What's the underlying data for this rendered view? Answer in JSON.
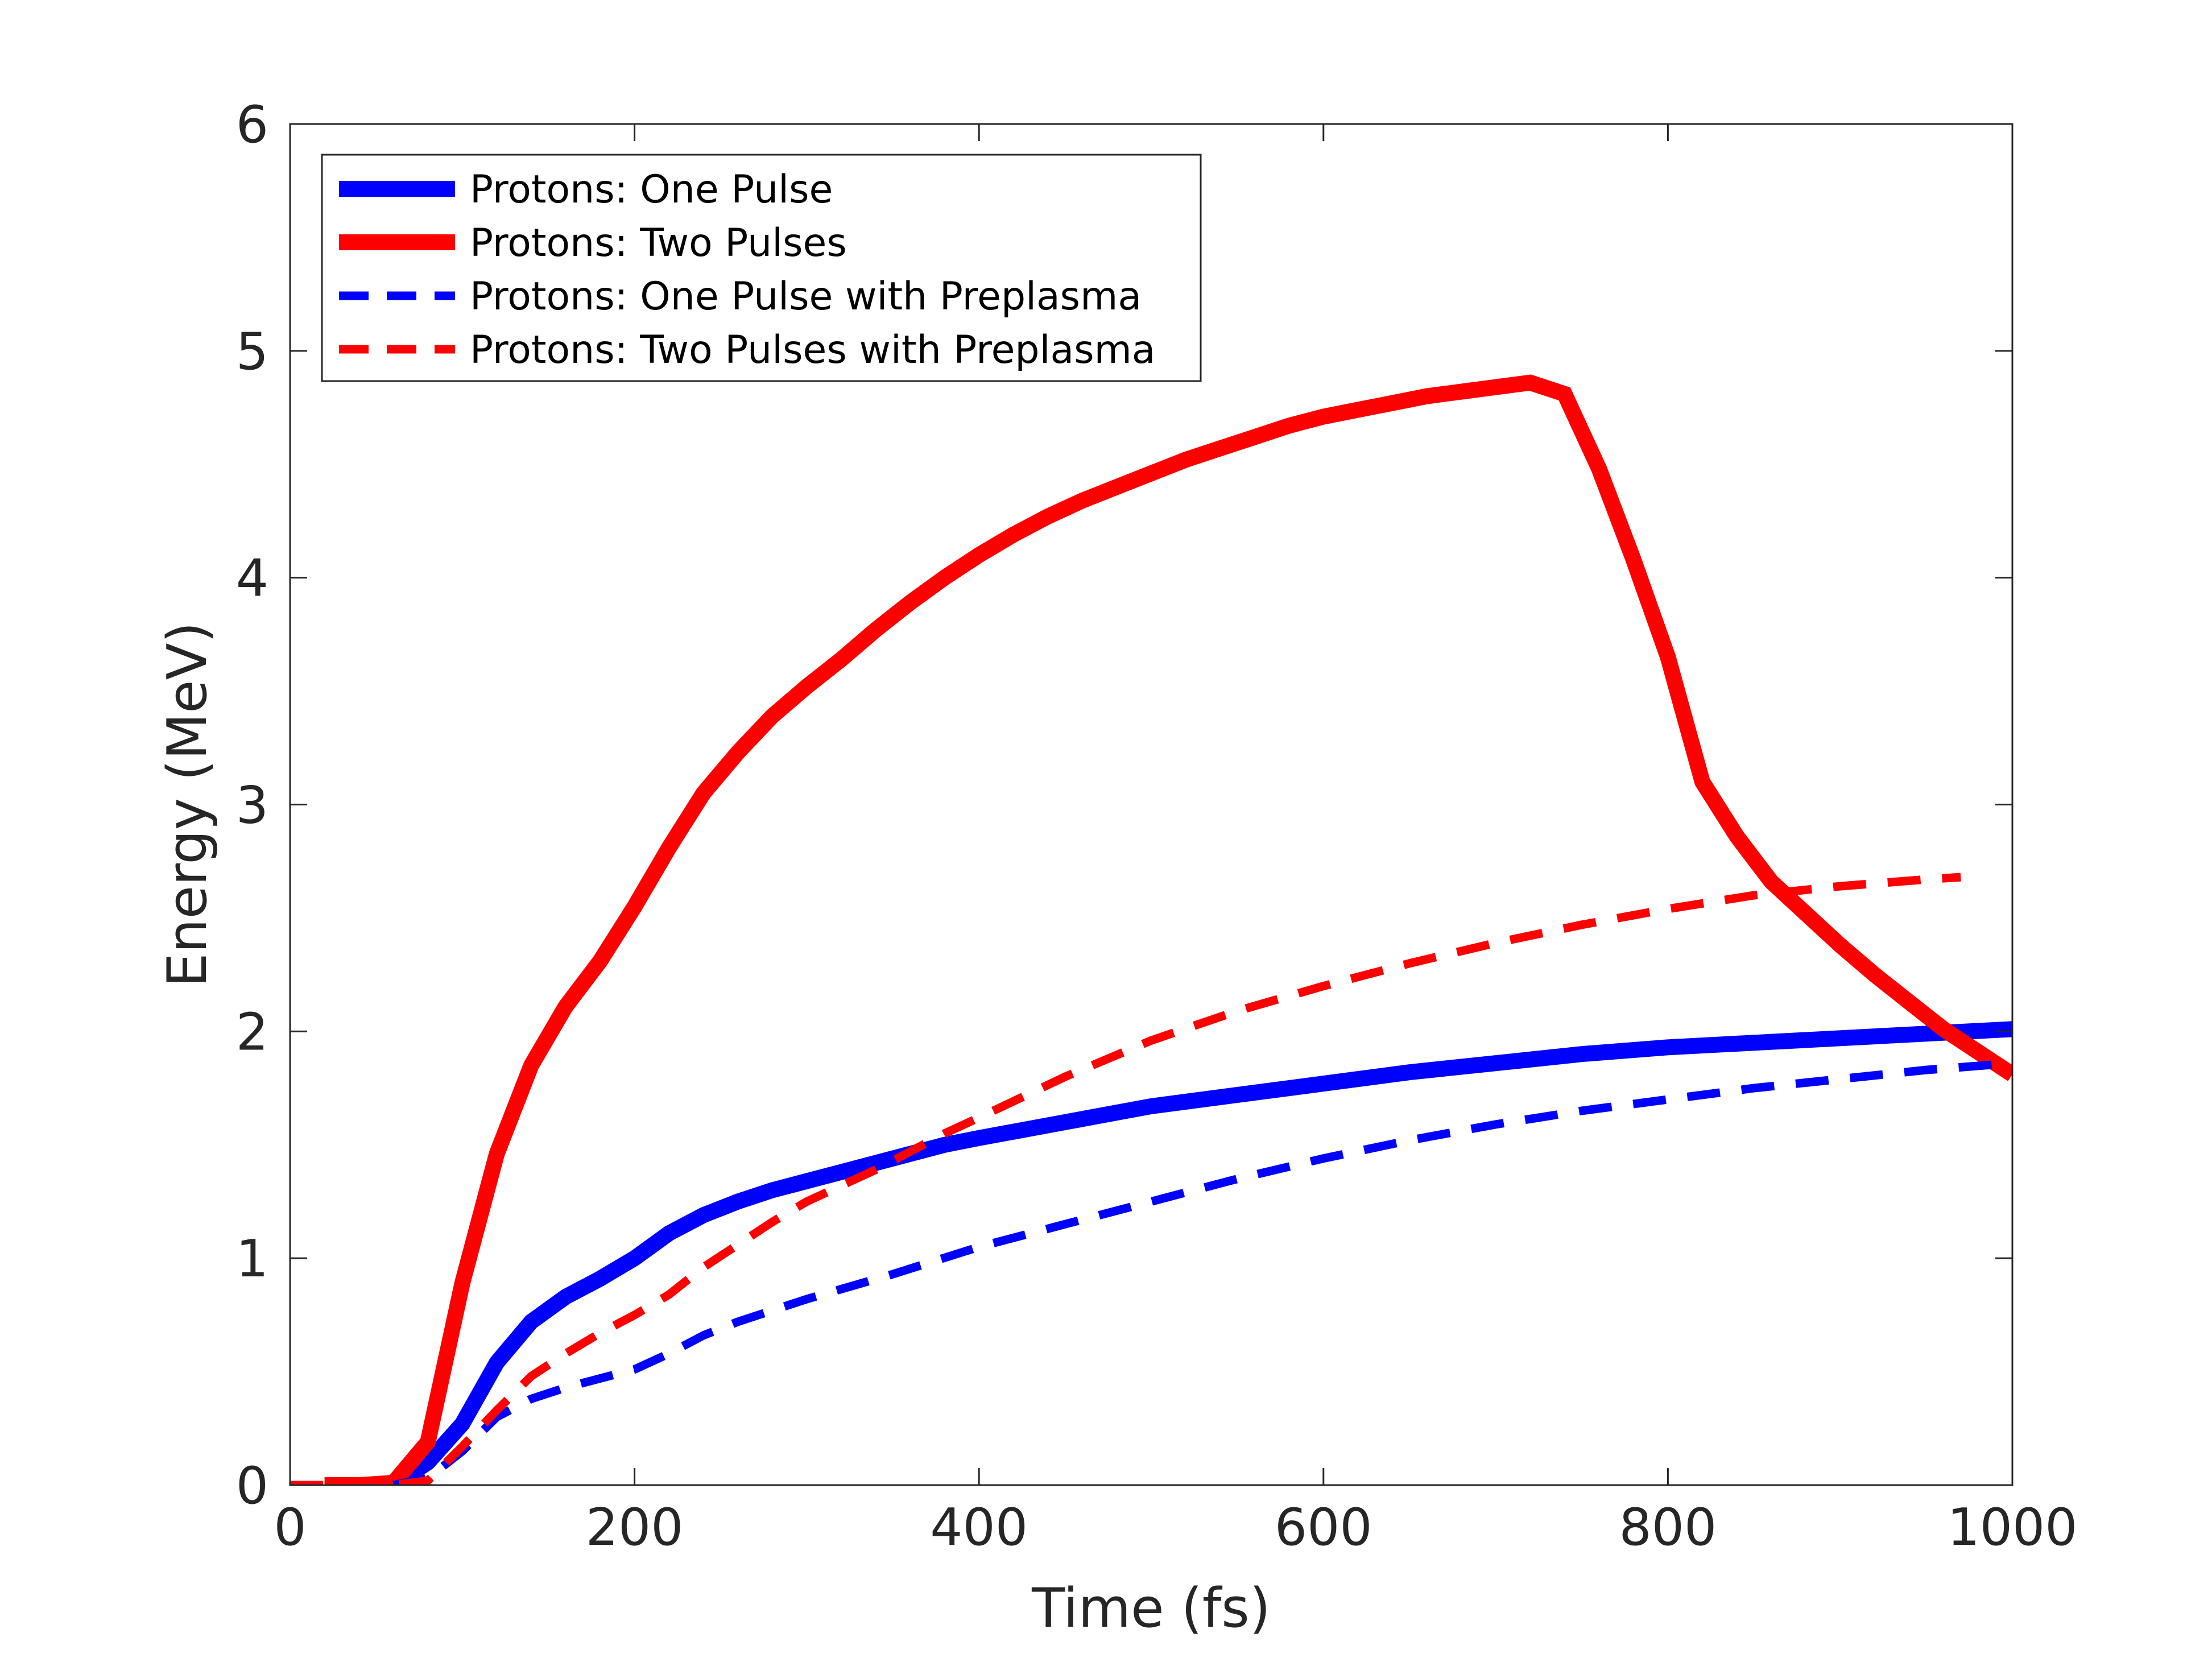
{
  "chart_data": {
    "type": "line",
    "title": "",
    "xlabel": "Time (fs)",
    "ylabel": "Energy (MeV)",
    "xlim": [
      0,
      1000
    ],
    "ylim": [
      0,
      6
    ],
    "xticks": [
      0,
      200,
      400,
      600,
      800,
      1000
    ],
    "yticks": [
      0,
      1,
      2,
      3,
      4,
      5,
      6
    ],
    "grid": false,
    "legend_position": "top-left",
    "series": [
      {
        "name": "Protons: One Pulse",
        "color": "#0000ff",
        "style": "solid",
        "x": [
          60,
          80,
          100,
          120,
          140,
          160,
          180,
          200,
          220,
          240,
          260,
          280,
          300,
          320,
          340,
          360,
          380,
          400,
          450,
          500,
          550,
          600,
          650,
          700,
          750,
          800,
          850,
          900,
          950,
          1000
        ],
        "y": [
          0.0,
          0.1,
          0.27,
          0.54,
          0.72,
          0.83,
          0.91,
          1.0,
          1.11,
          1.19,
          1.25,
          1.3,
          1.34,
          1.38,
          1.42,
          1.46,
          1.5,
          1.53,
          1.6,
          1.67,
          1.72,
          1.77,
          1.82,
          1.86,
          1.9,
          1.93,
          1.95,
          1.97,
          1.99,
          2.01
        ]
      },
      {
        "name": "Protons: Two Pulses",
        "color": "#ff0000",
        "style": "solid",
        "x": [
          20,
          40,
          60,
          80,
          100,
          120,
          140,
          160,
          180,
          200,
          220,
          240,
          260,
          280,
          300,
          320,
          340,
          360,
          380,
          400,
          420,
          440,
          460,
          480,
          500,
          520,
          540,
          560,
          580,
          600,
          620,
          640,
          660,
          680,
          700,
          720,
          740,
          760,
          780,
          800,
          820,
          840,
          860,
          880,
          900,
          920,
          940,
          960,
          980,
          1000
        ],
        "y": [
          0.0,
          0.0,
          0.01,
          0.19,
          0.89,
          1.46,
          1.85,
          2.11,
          2.31,
          2.55,
          2.81,
          3.05,
          3.23,
          3.39,
          3.52,
          3.64,
          3.77,
          3.89,
          4.0,
          4.1,
          4.19,
          4.27,
          4.34,
          4.4,
          4.46,
          4.52,
          4.57,
          4.62,
          4.67,
          4.71,
          4.74,
          4.77,
          4.8,
          4.82,
          4.84,
          4.86,
          4.81,
          4.48,
          4.08,
          3.65,
          3.1,
          2.86,
          2.66,
          2.52,
          2.38,
          2.25,
          2.13,
          2.01,
          1.91,
          1.81
        ]
      },
      {
        "name": "Protons: One Pulse with Preplasma",
        "color": "#0000ff",
        "style": "dashed",
        "x": [
          60,
          80,
          100,
          120,
          140,
          160,
          180,
          200,
          220,
          240,
          260,
          280,
          300,
          350,
          400,
          450,
          500,
          550,
          600,
          650,
          700,
          750,
          800,
          850,
          900,
          950,
          1000
        ],
        "y": [
          0.0,
          0.03,
          0.15,
          0.3,
          0.38,
          0.43,
          0.47,
          0.51,
          0.58,
          0.66,
          0.72,
          0.77,
          0.82,
          0.93,
          1.05,
          1.15,
          1.25,
          1.35,
          1.44,
          1.52,
          1.59,
          1.65,
          1.7,
          1.75,
          1.79,
          1.83,
          1.86
        ]
      },
      {
        "name": "Protons: Two Pulses with Preplasma",
        "color": "#ff0000",
        "style": "dashed",
        "x": [
          0,
          20,
          40,
          60,
          80,
          100,
          120,
          140,
          160,
          180,
          200,
          220,
          240,
          260,
          280,
          300,
          320,
          340,
          360,
          380,
          400,
          450,
          500,
          550,
          600,
          650,
          700,
          750,
          800,
          850,
          900,
          950,
          970
        ],
        "y": [
          0.0,
          0.0,
          0.0,
          0.0,
          0.02,
          0.17,
          0.33,
          0.48,
          0.58,
          0.67,
          0.75,
          0.84,
          0.96,
          1.06,
          1.16,
          1.25,
          1.32,
          1.39,
          1.47,
          1.55,
          1.62,
          1.8,
          1.96,
          2.09,
          2.2,
          2.3,
          2.39,
          2.47,
          2.54,
          2.6,
          2.64,
          2.67,
          2.68
        ]
      }
    ]
  }
}
